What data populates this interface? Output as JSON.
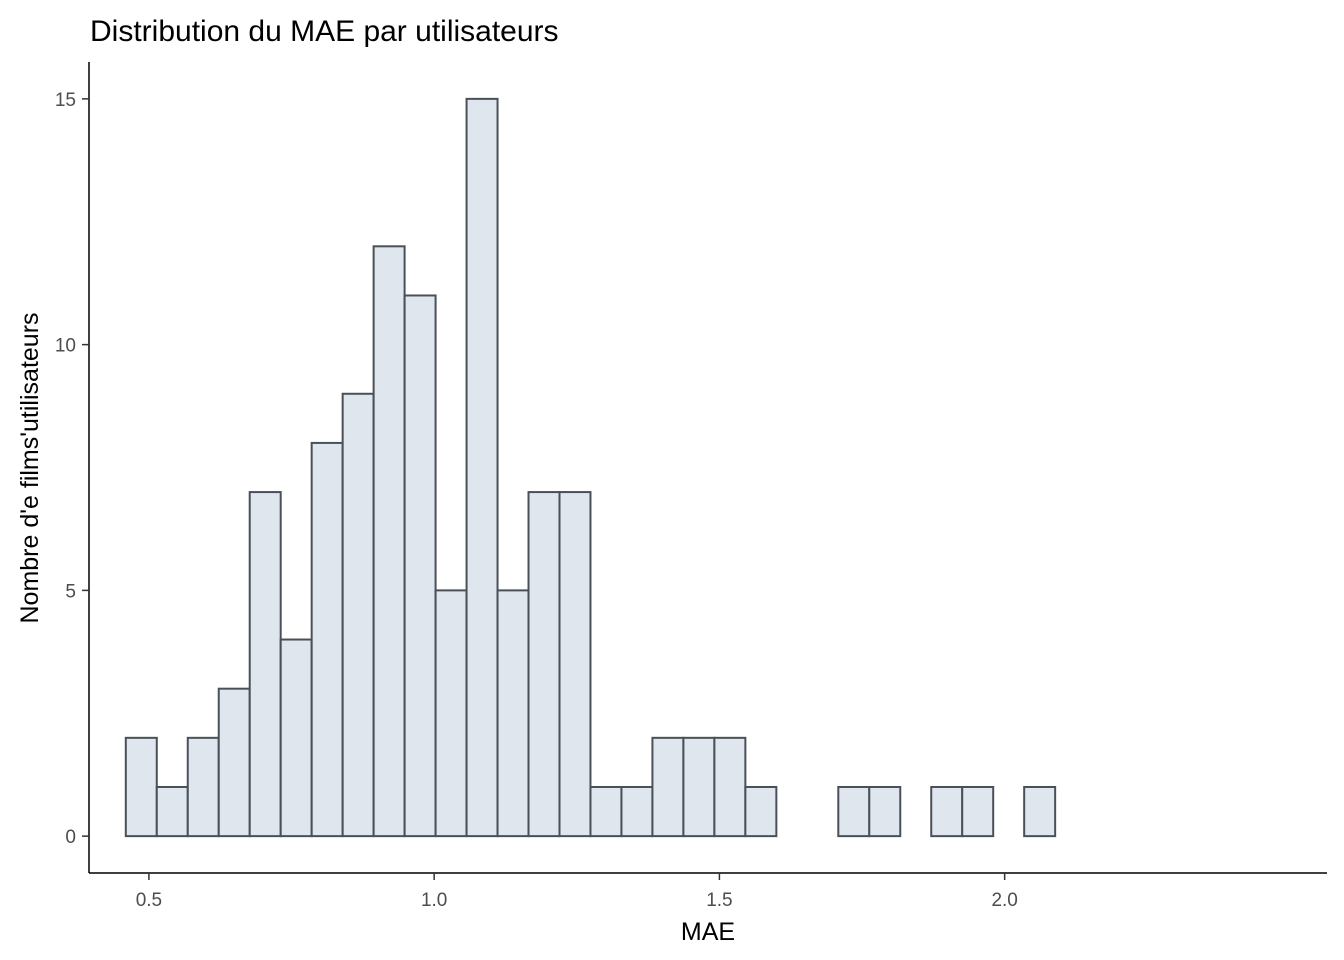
{
  "chart_data": {
    "type": "bar",
    "title": "Distribution du MAE par utilisateurs",
    "xlabel": "MAE",
    "ylabel": "Nombre d'e films'utilisateurs",
    "xlim": [
      0.395,
      2.565
    ],
    "ylim": [
      -0.75,
      15.75
    ],
    "x_ticks": [
      {
        "value": 0.5,
        "label": "0.5"
      },
      {
        "value": 1.0,
        "label": "1.0"
      },
      {
        "value": 1.5,
        "label": "1.5"
      },
      {
        "value": 2.0,
        "label": "2.0"
      }
    ],
    "y_ticks": [
      {
        "value": 0,
        "label": "0"
      },
      {
        "value": 5,
        "label": "5"
      },
      {
        "value": 10,
        "label": "10"
      },
      {
        "value": 15,
        "label": "15"
      }
    ],
    "bin_width": 0.0543,
    "bins": [
      {
        "x0": 0.4595,
        "count": 2
      },
      {
        "x0": 0.5138,
        "count": 1
      },
      {
        "x0": 0.5681,
        "count": 2
      },
      {
        "x0": 0.6224,
        "count": 3
      },
      {
        "x0": 0.6767,
        "count": 7
      },
      {
        "x0": 0.731,
        "count": 4
      },
      {
        "x0": 0.7853,
        "count": 8
      },
      {
        "x0": 0.8396,
        "count": 9
      },
      {
        "x0": 0.8939,
        "count": 12
      },
      {
        "x0": 0.9482,
        "count": 11
      },
      {
        "x0": 1.0025,
        "count": 5
      },
      {
        "x0": 1.0568,
        "count": 15
      },
      {
        "x0": 1.1111,
        "count": 5
      },
      {
        "x0": 1.1654,
        "count": 7
      },
      {
        "x0": 1.2197,
        "count": 7
      },
      {
        "x0": 1.274,
        "count": 1
      },
      {
        "x0": 1.3283,
        "count": 1
      },
      {
        "x0": 1.3826,
        "count": 2
      },
      {
        "x0": 1.4369,
        "count": 2
      },
      {
        "x0": 1.4912,
        "count": 2
      },
      {
        "x0": 1.5455,
        "count": 1
      },
      {
        "x0": 1.5998,
        "count": 0
      },
      {
        "x0": 1.6541,
        "count": 0
      },
      {
        "x0": 1.7084,
        "count": 1
      },
      {
        "x0": 1.7627,
        "count": 1
      },
      {
        "x0": 1.817,
        "count": 0
      },
      {
        "x0": 1.8713,
        "count": 1
      },
      {
        "x0": 1.9256,
        "count": 1
      },
      {
        "x0": 1.9799,
        "count": 0
      },
      {
        "x0": 2.0342,
        "count": 1
      }
    ],
    "grid": false,
    "legend": "none",
    "colors": {
      "bar_fill": "#dfe6ee",
      "bar_stroke": "#4a5058"
    }
  }
}
